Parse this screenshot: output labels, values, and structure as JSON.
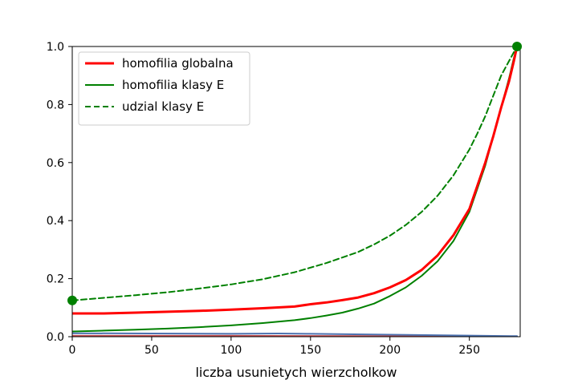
{
  "chart_data": {
    "type": "line",
    "title": "",
    "xlabel": "liczba usunietych wierzcholkow",
    "ylabel": "",
    "xlim": [
      0,
      282
    ],
    "ylim": [
      0,
      1.0
    ],
    "xticks": [
      "0",
      "50",
      "100",
      "150",
      "200",
      "250"
    ],
    "xtick_values": [
      0,
      50,
      100,
      150,
      200,
      250
    ],
    "yticks": [
      "0.0",
      "0.2",
      "0.4",
      "0.6",
      "0.8",
      "1.0"
    ],
    "ytick_values": [
      0,
      0.2,
      0.4,
      0.6,
      0.8,
      1.0
    ],
    "grid": false,
    "legend_position": "top-left",
    "series": [
      {
        "name": "homofilia globalna",
        "color": "#ff0000",
        "style": "solid",
        "x": [
          0,
          20,
          40,
          60,
          80,
          100,
          120,
          140,
          150,
          160,
          170,
          180,
          190,
          200,
          210,
          220,
          230,
          240,
          250,
          255,
          260,
          265,
          270,
          275,
          278,
          280
        ],
        "y": [
          0.08,
          0.08,
          0.083,
          0.086,
          0.089,
          0.093,
          0.098,
          0.104,
          0.112,
          0.118,
          0.126,
          0.135,
          0.15,
          0.17,
          0.195,
          0.23,
          0.28,
          0.35,
          0.44,
          0.52,
          0.6,
          0.69,
          0.79,
          0.88,
          0.95,
          1.0
        ]
      },
      {
        "name": "homofilia klasy E",
        "color": "#008000",
        "style": "solid",
        "x": [
          0,
          20,
          40,
          60,
          80,
          100,
          120,
          140,
          150,
          160,
          170,
          180,
          190,
          200,
          210,
          220,
          230,
          240,
          250,
          255,
          260,
          265,
          270,
          275,
          278,
          280
        ],
        "y": [
          0.018,
          0.021,
          0.024,
          0.028,
          0.033,
          0.039,
          0.047,
          0.057,
          0.064,
          0.073,
          0.083,
          0.097,
          0.114,
          0.14,
          0.17,
          0.21,
          0.26,
          0.33,
          0.43,
          0.51,
          0.59,
          0.69,
          0.79,
          0.89,
          0.96,
          1.0
        ]
      },
      {
        "name": "udzial klasy E",
        "color": "#008000",
        "style": "dashed",
        "x": [
          0,
          20,
          40,
          60,
          80,
          100,
          120,
          140,
          160,
          180,
          190,
          200,
          210,
          220,
          230,
          240,
          250,
          255,
          260,
          265,
          270,
          275,
          280
        ],
        "y": [
          0.125,
          0.134,
          0.143,
          0.153,
          0.166,
          0.18,
          0.198,
          0.222,
          0.254,
          0.292,
          0.318,
          0.348,
          0.385,
          0.43,
          0.486,
          0.556,
          0.645,
          0.7,
          0.76,
          0.83,
          0.9,
          0.95,
          1.0
        ]
      },
      {
        "name": "",
        "color": "#4c72b0",
        "style": "solid",
        "x": [
          0,
          50,
          100,
          130,
          150,
          200,
          250,
          280
        ],
        "y": [
          0.012,
          0.011,
          0.01,
          0.011,
          0.01,
          0.007,
          0.004,
          0.002
        ]
      },
      {
        "name": "",
        "color": "#c44e52",
        "style": "solid",
        "x": [
          0,
          100,
          200,
          280
        ],
        "y": [
          0.003,
          0.003,
          0.002,
          0.001
        ]
      }
    ],
    "markers": [
      {
        "x": 0,
        "y": 0.125,
        "color": "#008000"
      },
      {
        "x": 280,
        "y": 1.0,
        "color": "#008000"
      }
    ]
  }
}
